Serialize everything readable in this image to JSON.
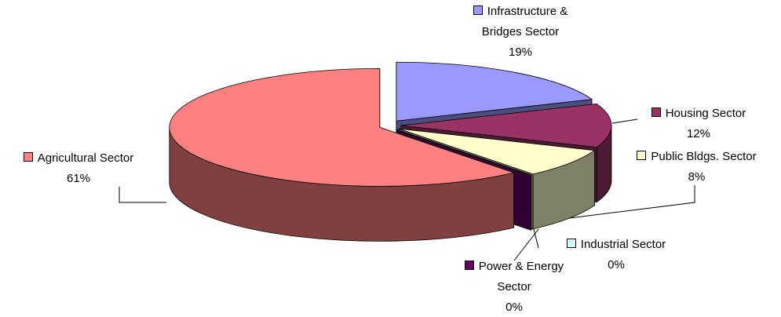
{
  "chart_data": {
    "type": "pie",
    "categories": [
      "Infrastructure & Bridges Sector",
      "Housing Sector",
      "Public Bldgs. Sector",
      "Industrial Sector",
      "Power & Energy Sector",
      "Agricultural Sector"
    ],
    "values": [
      19,
      12,
      8,
      0,
      0,
      61
    ],
    "value_labels": [
      "19%",
      "12%",
      "8%",
      "0%",
      "0%",
      "61%"
    ],
    "colors": [
      "#9999ff",
      "#993366",
      "#ffffcc",
      "#ccffff",
      "#660066",
      "#ff8080"
    ]
  }
}
